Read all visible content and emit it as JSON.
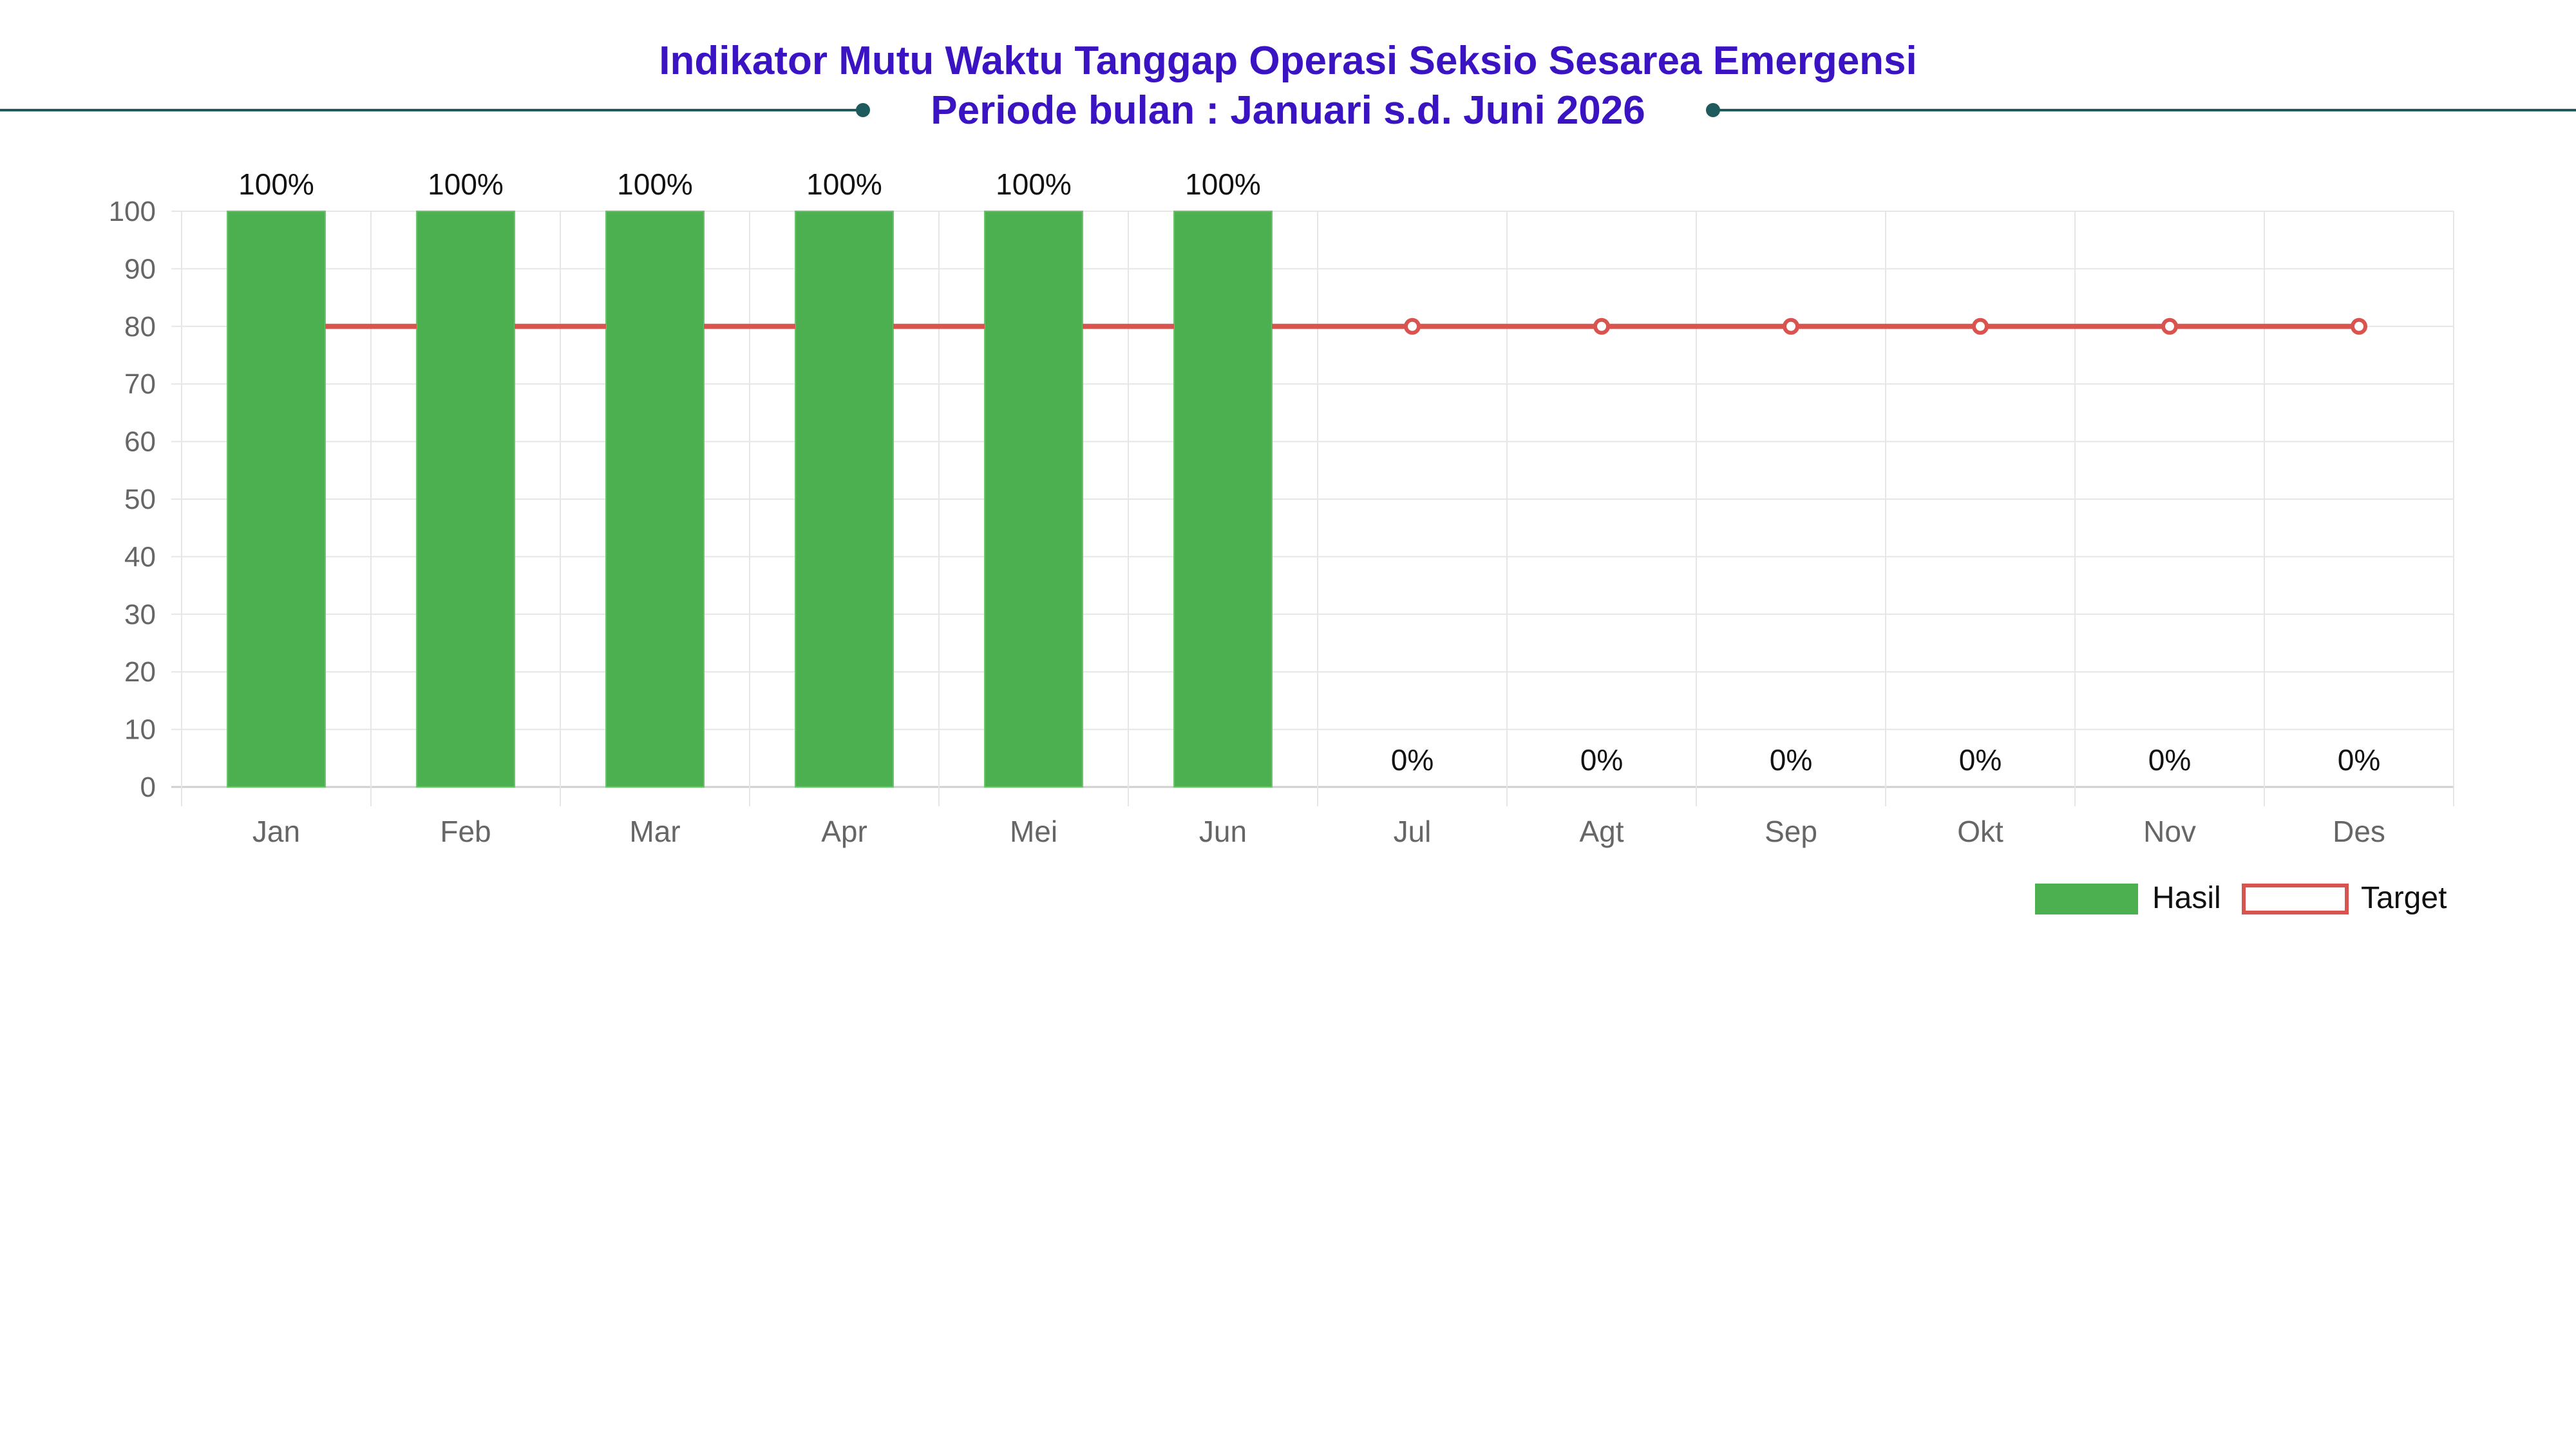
{
  "title": "Indikator Mutu Waktu Tanggap Operasi Seksio Sesarea Emergensi",
  "subtitle": "Periode bulan : Januari s.d. Juni 2026",
  "chart_data": {
    "type": "bar",
    "categories": [
      "Jan",
      "Feb",
      "Mar",
      "Apr",
      "Mei",
      "Jun",
      "Jul",
      "Agt",
      "Sep",
      "Okt",
      "Nov",
      "Des"
    ],
    "series": [
      {
        "name": "Hasil",
        "type": "bar",
        "color": "#4caf50",
        "values": [
          100,
          100,
          100,
          100,
          100,
          100,
          0,
          0,
          0,
          0,
          0,
          0
        ],
        "data_labels": [
          "100%",
          "100%",
          "100%",
          "100%",
          "100%",
          "100%",
          "0%",
          "0%",
          "0%",
          "0%",
          "0%",
          "0%"
        ]
      },
      {
        "name": "Target",
        "type": "line",
        "color": "#d9534f",
        "values": [
          80,
          80,
          80,
          80,
          80,
          80,
          80,
          80,
          80,
          80,
          80,
          80
        ]
      }
    ],
    "yticks": [
      "0",
      "10",
      "20",
      "30",
      "40",
      "50",
      "60",
      "70",
      "80",
      "90",
      "100"
    ],
    "ylim": [
      0,
      100
    ],
    "grid": true,
    "legend": "bottom-right"
  },
  "colors": {
    "title": "#3a13c2",
    "decor": "#1d5b5c",
    "grid": "#e6e6e6",
    "axis_text": "#666666"
  }
}
